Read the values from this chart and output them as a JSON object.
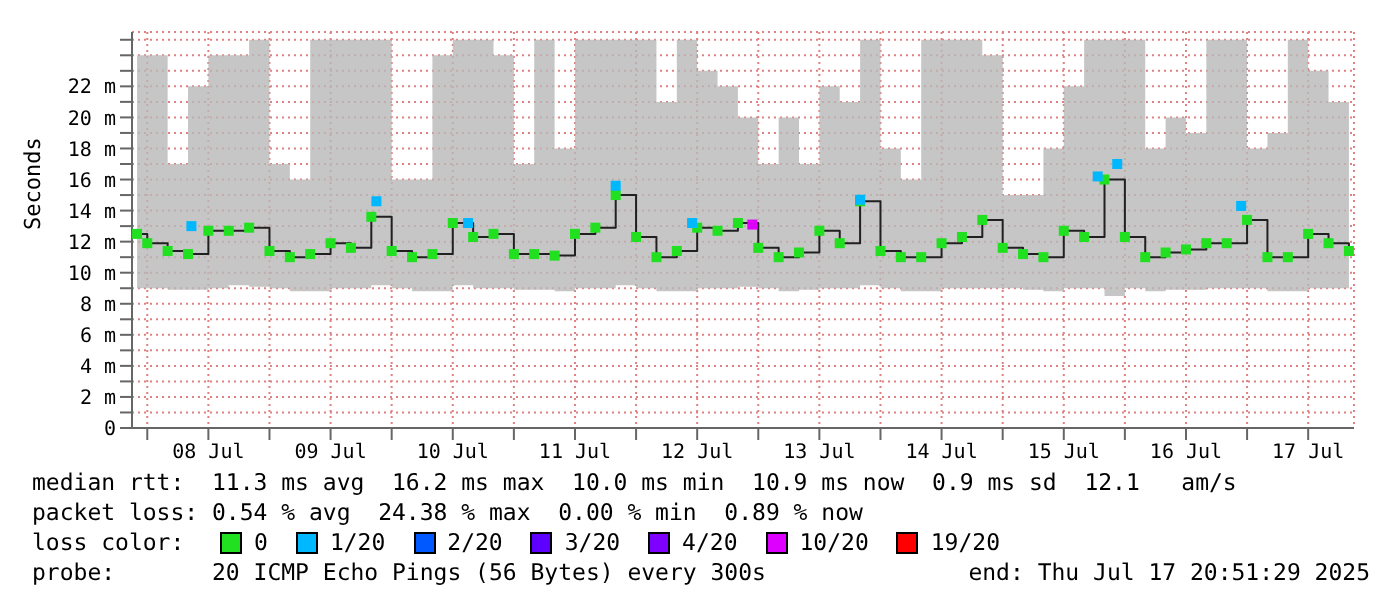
{
  "chart_data": {
    "type": "step",
    "ylabel": "Seconds",
    "legend_title": "loss color:",
    "legend": "bottom",
    "grid": true,
    "marker": "square",
    "line_style": "solid",
    "x": [
      "2025-07-07T22:00",
      "2025-07-08T00:00",
      "2025-07-08T04:00",
      "2025-07-08T08:00",
      "2025-07-08T12:00",
      "2025-07-08T16:00",
      "2025-07-08T20:00",
      "2025-07-09T00:00",
      "2025-07-09T04:00",
      "2025-07-09T08:00",
      "2025-07-09T12:00",
      "2025-07-09T16:00",
      "2025-07-09T20:00",
      "2025-07-10T00:00",
      "2025-07-10T04:00",
      "2025-07-10T08:00",
      "2025-07-10T12:00",
      "2025-07-10T16:00",
      "2025-07-10T20:00",
      "2025-07-11T00:00",
      "2025-07-11T04:00",
      "2025-07-11T08:00",
      "2025-07-11T12:00",
      "2025-07-11T16:00",
      "2025-07-11T20:00",
      "2025-07-12T00:00",
      "2025-07-12T04:00",
      "2025-07-12T08:00",
      "2025-07-12T12:00",
      "2025-07-12T16:00",
      "2025-07-12T20:00",
      "2025-07-13T00:00",
      "2025-07-13T04:00",
      "2025-07-13T08:00",
      "2025-07-13T12:00",
      "2025-07-13T16:00",
      "2025-07-13T20:00",
      "2025-07-14T00:00",
      "2025-07-14T04:00",
      "2025-07-14T08:00",
      "2025-07-14T12:00",
      "2025-07-14T16:00",
      "2025-07-14T20:00",
      "2025-07-15T00:00",
      "2025-07-15T04:00",
      "2025-07-15T08:00",
      "2025-07-15T12:00",
      "2025-07-15T16:00",
      "2025-07-15T20:00",
      "2025-07-16T00:00",
      "2025-07-16T04:00",
      "2025-07-16T08:00",
      "2025-07-16T12:00",
      "2025-07-16T16:00",
      "2025-07-16T20:00",
      "2025-07-17T00:00",
      "2025-07-17T04:00",
      "2025-07-17T08:00",
      "2025-07-17T12:00",
      "2025-07-17T16:00",
      "2025-07-17T20:00"
    ],
    "xlim": [
      "2025-07-07T21:00",
      "2025-07-17T21:00"
    ],
    "xticks": [
      {
        "value": "2025-07-08T00:00",
        "label": null
      },
      {
        "value": "2025-07-08T12:00",
        "label": "08 Jul"
      },
      {
        "value": "2025-07-09T00:00",
        "label": null
      },
      {
        "value": "2025-07-09T12:00",
        "label": "09 Jul"
      },
      {
        "value": "2025-07-10T00:00",
        "label": null
      },
      {
        "value": "2025-07-10T12:00",
        "label": "10 Jul"
      },
      {
        "value": "2025-07-11T00:00",
        "label": null
      },
      {
        "value": "2025-07-11T12:00",
        "label": "11 Jul"
      },
      {
        "value": "2025-07-12T00:00",
        "label": null
      },
      {
        "value": "2025-07-12T12:00",
        "label": "12 Jul"
      },
      {
        "value": "2025-07-13T00:00",
        "label": null
      },
      {
        "value": "2025-07-13T12:00",
        "label": "13 Jul"
      },
      {
        "value": "2025-07-14T00:00",
        "label": null
      },
      {
        "value": "2025-07-14T12:00",
        "label": "14 Jul"
      },
      {
        "value": "2025-07-15T00:00",
        "label": null
      },
      {
        "value": "2025-07-15T12:00",
        "label": "15 Jul"
      },
      {
        "value": "2025-07-16T00:00",
        "label": null
      },
      {
        "value": "2025-07-16T12:00",
        "label": "16 Jul"
      },
      {
        "value": "2025-07-17T00:00",
        "label": null
      },
      {
        "value": "2025-07-17T12:00",
        "label": "17 Jul"
      }
    ],
    "ylim": [
      0,
      25.5
    ],
    "yticks": [
      0,
      {
        "value": 1,
        "label": null
      },
      {
        "value": 2,
        "label": "2 m"
      },
      {
        "value": 3,
        "label": null
      },
      {
        "value": 4,
        "label": "4 m"
      },
      {
        "value": 5,
        "label": null
      },
      {
        "value": 6,
        "label": "6 m"
      },
      {
        "value": 7,
        "label": null
      },
      {
        "value": 8,
        "label": "8 m"
      },
      {
        "value": 9,
        "label": null
      },
      {
        "value": 10,
        "label": "10 m"
      },
      {
        "value": 11,
        "label": null
      },
      {
        "value": 12,
        "label": "12 m"
      },
      {
        "value": 13,
        "label": null
      },
      {
        "value": 14,
        "label": "14 m"
      },
      {
        "value": 15,
        "label": null
      },
      {
        "value": 16,
        "label": "16 m"
      },
      {
        "value": 17,
        "label": null
      },
      {
        "value": 18,
        "label": "18 m"
      },
      {
        "value": 19,
        "label": null
      },
      {
        "value": 20,
        "label": "20 m"
      },
      {
        "value": 21,
        "label": null
      },
      {
        "value": 22,
        "label": "22 m"
      },
      {
        "value": 23,
        "label": null
      },
      {
        "value": 24,
        "label": null
      },
      {
        "value": 25,
        "label": null
      }
    ],
    "series": [
      {
        "name": "0",
        "color": "#20e020",
        "values": [
          12.5,
          11.9,
          11.4,
          11.2,
          12.7,
          12.7,
          12.9,
          11.4,
          11.0,
          11.2,
          11.9,
          11.6,
          13.6,
          11.4,
          11.0,
          11.2,
          13.2,
          12.3,
          12.5,
          11.2,
          11.2,
          11.1,
          12.5,
          12.9,
          15.0,
          12.3,
          11.0,
          11.4,
          12.9,
          12.7,
          13.2,
          11.6,
          11.0,
          11.3,
          12.7,
          11.9,
          14.6,
          11.4,
          11.0,
          11.0,
          11.9,
          12.3,
          13.4,
          11.6,
          11.2,
          11.0,
          12.7,
          12.3,
          16.0,
          12.3,
          11.0,
          11.3,
          11.5,
          11.9,
          11.9,
          13.4,
          11.0,
          11.0,
          12.5,
          11.9,
          11.4
        ],
        "lower": [
          9.0,
          9.0,
          8.9,
          8.9,
          9.0,
          9.2,
          9.1,
          9.0,
          8.8,
          8.8,
          9.0,
          9.0,
          9.2,
          9.0,
          8.8,
          8.8,
          9.2,
          9.0,
          9.0,
          8.9,
          8.9,
          8.8,
          9.0,
          9.0,
          9.2,
          9.0,
          8.8,
          8.8,
          9.0,
          9.0,
          9.1,
          9.0,
          8.8,
          8.9,
          9.0,
          9.0,
          9.2,
          9.0,
          8.8,
          8.8,
          9.0,
          9.0,
          9.0,
          9.0,
          8.9,
          8.8,
          9.0,
          9.0,
          8.5,
          9.0,
          8.8,
          8.9,
          8.9,
          9.0,
          9.0,
          9.0,
          8.8,
          8.8,
          9.0,
          9.0,
          9.0
        ],
        "upper": [
          24,
          24,
          17,
          22,
          24,
          24,
          25,
          17,
          16,
          25,
          25,
          25,
          25,
          16,
          16,
          24,
          25,
          25,
          24,
          17,
          25,
          18,
          25,
          25,
          25,
          25,
          21,
          25,
          23,
          22,
          20,
          17,
          20,
          17,
          22,
          21,
          25,
          18,
          16,
          25,
          25,
          25,
          24,
          15,
          15,
          18,
          22,
          25,
          25,
          25,
          18,
          20,
          19,
          25,
          25,
          18,
          19,
          25,
          23,
          21,
          18
        ]
      },
      {
        "name": "1/20",
        "type": "scatter",
        "color": "#00b8ff",
        "x": [
          "2025-07-08T08:40",
          "2025-07-09T21:00",
          "2025-07-10T15:00",
          "2025-07-11T20:00",
          "2025-07-12T11:00",
          "2025-07-13T20:00",
          "2025-07-15T18:40",
          "2025-07-15T22:30",
          "2025-07-16T22:50"
        ],
        "values": [
          13.0,
          14.6,
          13.2,
          15.6,
          13.2,
          14.7,
          16.2,
          17.0,
          14.3
        ]
      },
      {
        "name": "2/20",
        "type": "scatter",
        "color": "#0059ff",
        "values": [
          null,
          null,
          null,
          null,
          null,
          null,
          null,
          null,
          null,
          null,
          null,
          null,
          null,
          null,
          null,
          null,
          null,
          null,
          null,
          null,
          null,
          null,
          null,
          null,
          null,
          null,
          null,
          null,
          null,
          null,
          null,
          null,
          null,
          null,
          null,
          null,
          null,
          null,
          null,
          null,
          null,
          null,
          null,
          null,
          null,
          null,
          null,
          null,
          null,
          null,
          null,
          null,
          null,
          null,
          null,
          null,
          null,
          null,
          null,
          null,
          null
        ]
      },
      {
        "name": "3/20",
        "type": "scatter",
        "color": "#5e00ff",
        "values": [
          null,
          null,
          null,
          null,
          null,
          null,
          null,
          null,
          null,
          null,
          null,
          null,
          null,
          null,
          null,
          null,
          null,
          null,
          null,
          null,
          null,
          null,
          null,
          null,
          null,
          null,
          null,
          null,
          null,
          null,
          null,
          null,
          null,
          null,
          null,
          null,
          null,
          null,
          null,
          null,
          null,
          null,
          null,
          null,
          null,
          null,
          null,
          null,
          null,
          null,
          null,
          null,
          null,
          null,
          null,
          null,
          null,
          null,
          null,
          null,
          null
        ]
      },
      {
        "name": "4/20",
        "type": "scatter",
        "color": "#7e00ff",
        "values": [
          null,
          null,
          null,
          null,
          null,
          null,
          null,
          null,
          null,
          null,
          null,
          null,
          null,
          null,
          null,
          null,
          null,
          null,
          null,
          null,
          null,
          null,
          null,
          null,
          null,
          null,
          null,
          null,
          null,
          null,
          null,
          null,
          null,
          null,
          null,
          null,
          null,
          null,
          null,
          null,
          null,
          null,
          null,
          null,
          null,
          null,
          null,
          null,
          null,
          null,
          null,
          null,
          null,
          null,
          null,
          null,
          null,
          null,
          null,
          null,
          null
        ]
      },
      {
        "name": "10/20",
        "type": "scatter",
        "color": "#dd00ff",
        "x": [
          "2025-07-12T22:50"
        ],
        "values": [
          13.1
        ]
      },
      {
        "name": "19/20",
        "type": "scatter",
        "color": "#ff0000",
        "values": [
          null,
          null,
          null,
          null,
          null,
          null,
          null,
          null,
          null,
          null,
          null,
          null,
          null,
          null,
          null,
          null,
          null,
          null,
          null,
          null,
          null,
          null,
          null,
          null,
          null,
          null,
          null,
          null,
          null,
          null,
          null,
          null,
          null,
          null,
          null,
          null,
          null,
          null,
          null,
          null,
          null,
          null,
          null,
          null,
          null,
          null,
          null,
          null,
          null,
          null,
          null,
          null,
          null,
          null,
          null,
          null,
          null,
          null,
          null,
          null,
          null
        ]
      }
    ],
    "annotations": [
      "median rtt:  11.3 ms avg  16.2 ms max  10.0 ms min  10.9 ms now  0.9 ms sd  12.1   am/s",
      "packet loss: 0.54 % avg  24.38 % max  0.00 % min  0.89 % now",
      "probe:       20 ICMP Echo Pings (56 Bytes) every 300s",
      "end: Thu Jul 17 20:51:29 2025"
    ]
  }
}
